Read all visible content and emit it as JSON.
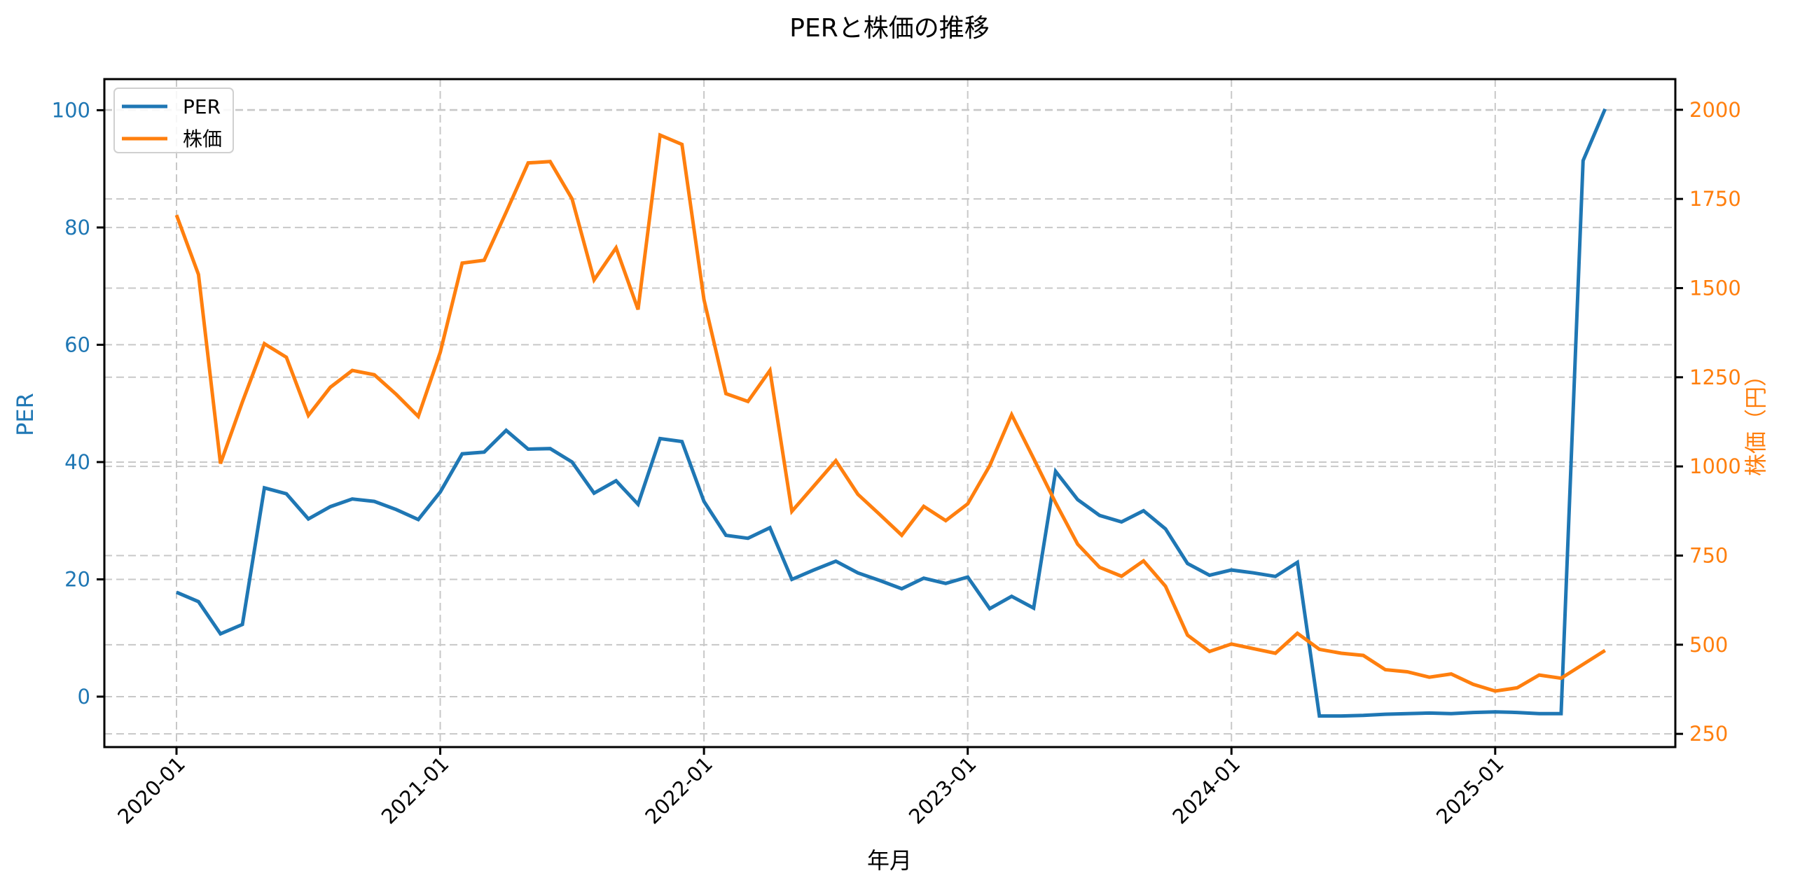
{
  "chart_data": {
    "type": "line",
    "title": "PERと株価の推移",
    "xlabel": "年月",
    "ylabel": "PER",
    "y2label": "株価（円）",
    "ylim": [
      -8.6,
      105.3
    ],
    "y2lim": [
      213,
      2086
    ],
    "yticks": [
      0,
      20,
      40,
      60,
      80,
      100
    ],
    "y2ticks": [
      250,
      500,
      750,
      1000,
      1250,
      1500,
      1750,
      2000
    ],
    "xticks": [
      "2020-01",
      "2021-01",
      "2022-01",
      "2023-01",
      "2024-01",
      "2025-01"
    ],
    "grid": true,
    "legend_position": "upper left",
    "x": [
      "2020-01",
      "2020-02",
      "2020-03",
      "2020-04",
      "2020-05",
      "2020-06",
      "2020-07",
      "2020-08",
      "2020-09",
      "2020-10",
      "2020-11",
      "2020-12",
      "2021-01",
      "2021-02",
      "2021-03",
      "2021-04",
      "2021-05",
      "2021-06",
      "2021-07",
      "2021-08",
      "2021-09",
      "2021-10",
      "2021-11",
      "2021-12",
      "2022-01",
      "2022-02",
      "2022-03",
      "2022-04",
      "2022-05",
      "2022-06",
      "2022-07",
      "2022-08",
      "2022-09",
      "2022-10",
      "2022-11",
      "2022-12",
      "2023-01",
      "2023-02",
      "2023-03",
      "2023-04",
      "2023-05",
      "2023-06",
      "2023-07",
      "2023-08",
      "2023-09",
      "2023-10",
      "2023-11",
      "2023-12",
      "2024-01",
      "2024-02",
      "2024-03",
      "2024-04",
      "2024-05",
      "2024-06",
      "2024-07",
      "2024-08",
      "2024-09",
      "2024-10",
      "2024-11",
      "2024-12",
      "2025-01",
      "2025-02",
      "2025-03",
      "2025-04",
      "2025-05",
      "2025-06"
    ],
    "series": [
      {
        "name": "PER",
        "axis": "left",
        "color": "#1f77b4",
        "values": [
          17.8,
          16.2,
          10.7,
          12.3,
          35.6,
          34.6,
          30.3,
          32.4,
          33.7,
          33.3,
          31.9,
          30.2,
          34.9,
          41.4,
          41.7,
          45.4,
          42.2,
          42.3,
          40.0,
          34.7,
          36.8,
          32.8,
          44.0,
          43.5,
          33.3,
          27.5,
          27.0,
          28.8,
          20.0,
          21.6,
          23.1,
          21.1,
          19.8,
          18.4,
          20.2,
          19.3,
          20.4,
          15.0,
          17.1,
          15.1,
          38.4,
          33.6,
          30.9,
          29.8,
          31.7,
          28.6,
          22.7,
          20.7,
          21.6,
          21.1,
          20.5,
          22.9,
          -3.3,
          -3.3,
          -3.2,
          -3.0,
          -2.9,
          -2.8,
          -2.9,
          -2.7,
          -2.6,
          -2.7,
          -2.9,
          -2.9,
          91.4,
          100.2
        ]
      },
      {
        "name": "株価",
        "axis": "right",
        "color": "#ff7f0e",
        "values": [
          1705,
          1538,
          1008,
          1181,
          1344,
          1306,
          1143,
          1222,
          1269,
          1257,
          1202,
          1140,
          1320,
          1570,
          1578,
          1713,
          1851,
          1855,
          1750,
          1523,
          1613,
          1440,
          1929,
          1903,
          1468,
          1204,
          1182,
          1269,
          874,
          945,
          1016,
          922,
          865,
          807,
          888,
          848,
          895,
          1002,
          1145,
          1022,
          898,
          782,
          717,
          692,
          735,
          664,
          527,
          481,
          502,
          489,
          476,
          532,
          487,
          476,
          470,
          430,
          424,
          409,
          418,
          389,
          370,
          379,
          415,
          406,
          445,
          484
        ]
      }
    ]
  },
  "legend": {
    "items": [
      {
        "label": "PER",
        "color": "#1f77b4"
      },
      {
        "label": "株価",
        "color": "#ff7f0e"
      }
    ]
  },
  "colors": {
    "per": "#1f77b4",
    "price": "#ff7f0e",
    "grid": "#c8c8c8",
    "frame": "#000000"
  }
}
